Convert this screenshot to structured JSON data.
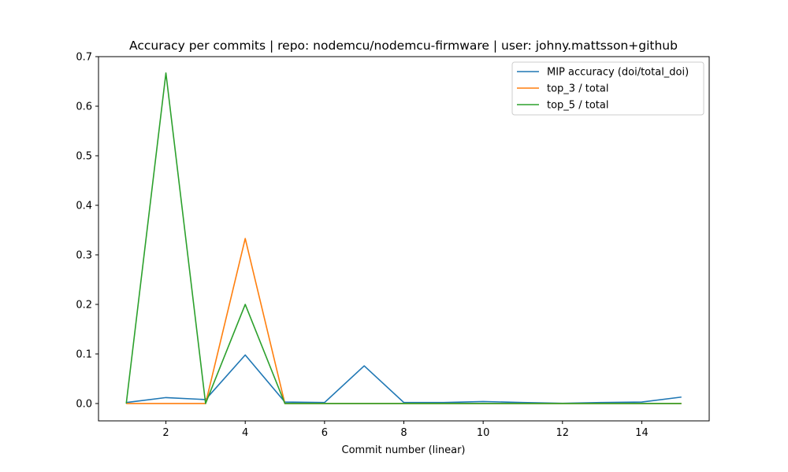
{
  "chart_data": {
    "type": "line",
    "title": "Accuracy per commits | repo: nodemcu/nodemcu-firmware | user: johny.mattsson+github",
    "xlabel": "Commit number (linear)",
    "ylabel": "",
    "xlim": [
      0.3,
      15.7
    ],
    "ylim": [
      -0.035,
      0.7
    ],
    "xticks": [
      2,
      4,
      6,
      8,
      10,
      12,
      14
    ],
    "yticks": [
      0.0,
      0.1,
      0.2,
      0.3,
      0.4,
      0.5,
      0.6,
      0.7
    ],
    "grid": false,
    "legend_position": "top-right",
    "x": [
      1,
      2,
      3,
      4,
      5,
      6,
      7,
      8,
      9,
      10,
      11,
      12,
      13,
      14,
      15
    ],
    "series": [
      {
        "name": "MIP accuracy (doi/total_doi)",
        "color": "#1f77b4",
        "values": [
          0.002,
          0.012,
          0.008,
          0.098,
          0.003,
          0.002,
          0.076,
          0.002,
          0.002,
          0.004,
          0.002,
          0.0005,
          0.002,
          0.003,
          0.013
        ]
      },
      {
        "name": "top_3 / total",
        "color": "#ff7f0e",
        "values": [
          0.0,
          0.0,
          0.0,
          0.333,
          0.0,
          0.0,
          0.0,
          0.0,
          0.0,
          0.0,
          0.0,
          0.0,
          0.0,
          0.0,
          0.0
        ]
      },
      {
        "name": "top_5 / total",
        "color": "#2ca02c",
        "values": [
          0.0,
          0.667,
          0.0,
          0.2,
          0.0,
          0.0,
          0.0,
          0.0,
          0.0,
          0.0,
          0.0,
          0.0,
          0.0,
          0.0,
          0.0
        ]
      }
    ]
  }
}
